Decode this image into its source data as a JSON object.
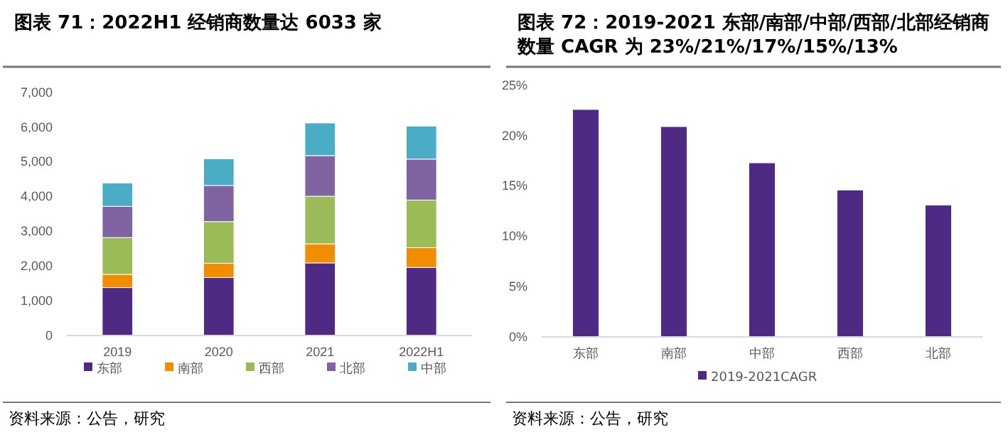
{
  "chart_data": [
    {
      "type": "bar",
      "title": "图表 71：2022H1 经销商数量达 6033 家",
      "categories": [
        "2019",
        "2020",
        "2021",
        "2022H1"
      ],
      "stacked": true,
      "series": [
        {
          "name": "东部",
          "color": "#4e2a84",
          "values": [
            1380,
            1670,
            2090,
            1960
          ]
        },
        {
          "name": "南部",
          "color": "#f28c00",
          "values": [
            380,
            410,
            550,
            570
          ]
        },
        {
          "name": "西部",
          "color": "#9bbb59",
          "values": [
            1060,
            1200,
            1370,
            1370
          ]
        },
        {
          "name": "北部",
          "color": "#8064a2",
          "values": [
            900,
            1040,
            1170,
            1180
          ]
        },
        {
          "name": "中部",
          "color": "#4bacc6",
          "values": [
            670,
            770,
            940,
            950
          ]
        }
      ],
      "ylim": [
        0,
        7000
      ],
      "yticks": [
        0,
        {
          "value": 1000,
          "label": "1,000"
        },
        {
          "value": 2000,
          "label": "2,000"
        },
        {
          "value": 3000,
          "label": "3,000"
        },
        {
          "value": 4000,
          "label": "4,000"
        },
        {
          "value": 5000,
          "label": "5,000"
        },
        {
          "value": 6000,
          "label": "6,000"
        },
        {
          "value": 7000,
          "label": "7,000"
        }
      ],
      "grid": false,
      "legend": "bottom",
      "annotations": [
        "资料来源：公告，研究"
      ]
    },
    {
      "type": "bar",
      "title": "图表 72：2019-2021 东部/南部/中部/西部/北部经销商数量 CAGR 为 23%/21%/17%/15%/13%",
      "categories": [
        "东部",
        "南部",
        "中部",
        "西部",
        "北部"
      ],
      "series": [
        {
          "name": "2019-2021CAGR",
          "color": "#4e2a84",
          "values": [
            22.6,
            20.9,
            17.3,
            14.6,
            13.1
          ]
        }
      ],
      "ylim": [
        0,
        25
      ],
      "yticks": [
        {
          "value": 0,
          "label": "0%"
        },
        {
          "value": 5,
          "label": "5%"
        },
        {
          "value": 10,
          "label": "10%"
        },
        {
          "value": 15,
          "label": "15%"
        },
        {
          "value": 20,
          "label": "20%"
        },
        {
          "value": 25,
          "label": "25%"
        }
      ],
      "grid": false,
      "legend": "bottom",
      "annotations": [
        "资料来源：公告，研究"
      ]
    }
  ]
}
